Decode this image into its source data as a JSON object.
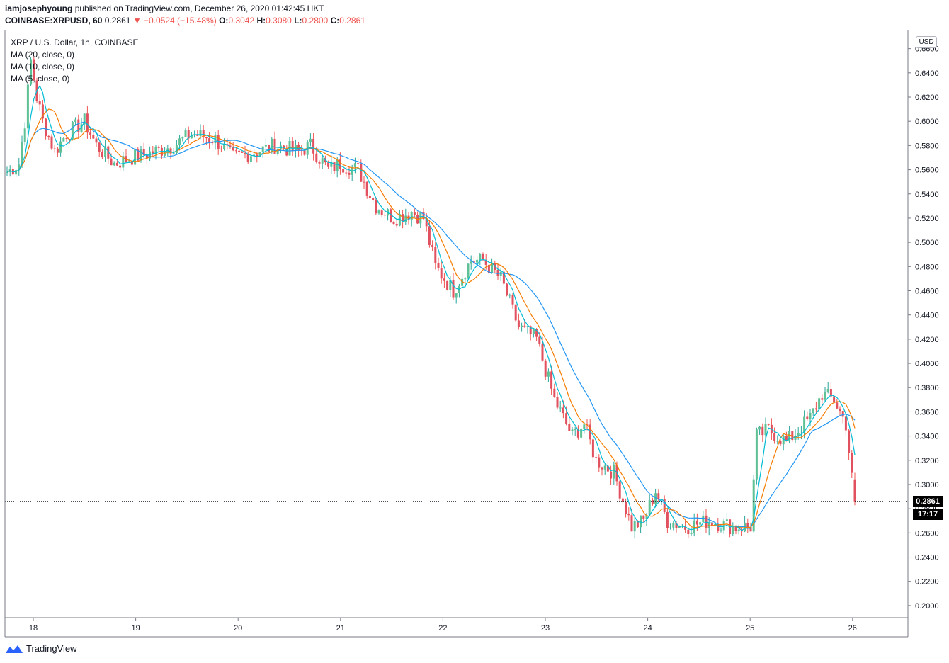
{
  "header": {
    "author": "iamjosephyoung",
    "published_text": "published on TradingView.com, December 26, 2020 01:42:45 HKT",
    "symbol": "COINBASE:XRPUSD, 60",
    "last": "0.2861",
    "change_arrow": "▼",
    "change": "−0.0524 (−15.48%)",
    "open_label": "O:",
    "open": "0.3042",
    "high_label": "H:",
    "high": "0.3080",
    "low_label": "L:",
    "low": "0.2800",
    "close_label": "C:",
    "close": "0.2861"
  },
  "legend": {
    "title": "XRP / U.S. Dollar, 1h, COINBASE",
    "ma20": "MA (20, close, 0)",
    "ma10": "MA (10, close, 0)",
    "ma5": "MA (5, close, 0)"
  },
  "currency_badge": "USD",
  "last_price_badge": "0.2861",
  "countdown_badge": "17:17",
  "footer": {
    "brand": "TradingView",
    "logo_icon": "tradingview-logo-icon"
  },
  "colors": {
    "up": "#26a69a",
    "up_body": "#5fc195",
    "down": "#ef5350",
    "down_body": "#e2515f",
    "ma20": "#2196f3",
    "ma10": "#f57c00",
    "ma5": "#00bcd4",
    "text_red": "#ef5350"
  },
  "chart_data": {
    "type": "candlestick",
    "title": "XRP / U.S. Dollar, 1h, COINBASE",
    "y_axis": {
      "min": 0.19,
      "max": 0.675,
      "side": "right",
      "ticks": [
        "0.2000",
        "0.2200",
        "0.2400",
        "0.2600",
        "0.2800",
        "0.3000",
        "0.3200",
        "0.3400",
        "0.3600",
        "0.3800",
        "0.4000",
        "0.4200",
        "0.4400",
        "0.4600",
        "0.4800",
        "0.5000",
        "0.5200",
        "0.5400",
        "0.5600",
        "0.5800",
        "0.6000",
        "0.6200",
        "0.6400",
        "0.6600"
      ]
    },
    "x_axis": {
      "ticks": [
        "18",
        "19",
        "20",
        "21",
        "22",
        "23",
        "24",
        "25",
        "26"
      ]
    },
    "last_price": 0.2861,
    "series": [
      {
        "name": "XRPUSD",
        "kind": "ohlc",
        "interval": "1h",
        "anchor_points_close": [
          [
            0,
            0.558
          ],
          [
            4,
            0.565
          ],
          [
            6,
            0.6
          ],
          [
            8,
            0.65
          ],
          [
            10,
            0.62
          ],
          [
            12,
            0.6
          ],
          [
            16,
            0.575
          ],
          [
            20,
            0.59
          ],
          [
            26,
            0.6
          ],
          [
            30,
            0.58
          ],
          [
            36,
            0.565
          ],
          [
            42,
            0.57
          ],
          [
            50,
            0.575
          ],
          [
            56,
            0.58
          ],
          [
            62,
            0.59
          ],
          [
            70,
            0.585
          ],
          [
            76,
            0.57
          ],
          [
            84,
            0.575
          ],
          [
            90,
            0.58
          ],
          [
            98,
            0.575
          ],
          [
            102,
            0.58
          ],
          [
            108,
            0.56
          ],
          [
            112,
            0.565
          ],
          [
            118,
            0.56
          ],
          [
            124,
            0.53
          ],
          [
            130,
            0.52
          ],
          [
            136,
            0.525
          ],
          [
            140,
            0.52
          ],
          [
            144,
            0.48
          ],
          [
            150,
            0.46
          ],
          [
            156,
            0.485
          ],
          [
            160,
            0.485
          ],
          [
            166,
            0.47
          ],
          [
            172,
            0.43
          ],
          [
            178,
            0.42
          ],
          [
            184,
            0.37
          ],
          [
            190,
            0.34
          ],
          [
            194,
            0.35
          ],
          [
            198,
            0.32
          ],
          [
            204,
            0.31
          ],
          [
            210,
            0.265
          ],
          [
            214,
            0.27
          ],
          [
            218,
            0.295
          ],
          [
            222,
            0.27
          ],
          [
            228,
            0.265
          ],
          [
            236,
            0.27
          ],
          [
            244,
            0.265
          ],
          [
            250,
            0.265
          ],
          [
            252,
            0.34
          ],
          [
            256,
            0.345
          ],
          [
            262,
            0.335
          ],
          [
            270,
            0.355
          ],
          [
            274,
            0.375
          ],
          [
            278,
            0.37
          ],
          [
            282,
            0.35
          ],
          [
            284,
            0.305
          ],
          [
            285,
            0.2861
          ]
        ]
      }
    ],
    "moving_averages": [
      {
        "name": "MA (20, close, 0)",
        "period": 20
      },
      {
        "name": "MA (10, close, 0)",
        "period": 10
      },
      {
        "name": "MA (5, close, 0)",
        "period": 5
      }
    ]
  }
}
